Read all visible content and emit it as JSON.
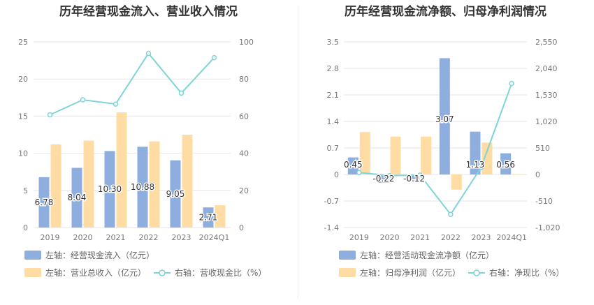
{
  "colors": {
    "bar1": "#8eaedf",
    "bar2": "#fedca4",
    "line": "#7fd4d8",
    "grid": "#e6e6ec",
    "axisText": "#777777",
    "labelText": "#333333"
  },
  "charts": [
    {
      "title": "历年经营现金流入、营业收入情况",
      "legend": {
        "bar1": "左轴：经营现金流入（亿元）",
        "bar2": "左轴：营业总收入（亿元）",
        "line": "右轴：营收现金比（%）"
      },
      "left_ticks": [
        "0",
        "5",
        "10",
        "15",
        "20",
        "25"
      ],
      "right_ticks": [
        "0",
        "20",
        "40",
        "60",
        "80",
        "100"
      ]
    },
    {
      "title": "历年经营现金流净额、归母净利润情况",
      "legend": {
        "bar1": "左轴：经营活动现金流净额（亿元）",
        "bar2": "左轴：归母净利润（亿元）",
        "line": "右轴：净现比（%）"
      },
      "left_ticks": [
        "-1.4",
        "-0.7",
        "0",
        "0.7",
        "1.4",
        "2.1",
        "2.8",
        "3.5"
      ],
      "right_ticks": [
        "-1,020",
        "-510",
        "0",
        "510",
        "1,020",
        "1,530",
        "2,040",
        "2,550"
      ]
    }
  ],
  "chart_data": [
    {
      "type": "bar",
      "title": "历年经营现金流入、营业收入情况",
      "categories": [
        "2019",
        "2020",
        "2021",
        "2022",
        "2023",
        "2024Q1"
      ],
      "ylim_left": [
        0,
        25
      ],
      "ylim_right": [
        0,
        100
      ],
      "series": [
        {
          "name": "左轴：经营现金流入（亿元）",
          "axis": "left",
          "kind": "bar",
          "values": [
            6.78,
            8.04,
            10.3,
            10.88,
            9.05,
            2.71
          ],
          "labels": [
            "6.78",
            "8.04",
            "10.30",
            "10.88",
            "9.05",
            "2.71"
          ]
        },
        {
          "name": "左轴：营业总收入（亿元）",
          "axis": "left",
          "kind": "bar",
          "values": [
            11.2,
            11.7,
            15.5,
            11.6,
            12.5,
            3.0
          ]
        },
        {
          "name": "右轴：营收现金比（%）",
          "axis": "right",
          "kind": "line",
          "values": [
            60.7,
            68.8,
            66.5,
            93.8,
            72.4,
            91.5
          ]
        }
      ],
      "grid": true,
      "legend_position": "bottom"
    },
    {
      "type": "bar",
      "title": "历年经营现金流净额、归母净利润情况",
      "categories": [
        "2019",
        "2020",
        "2021",
        "2022",
        "2023",
        "2024Q1"
      ],
      "ylim_left": [
        -1.4,
        3.5
      ],
      "ylim_right": [
        -1020,
        2550
      ],
      "series": [
        {
          "name": "左轴：经营活动现金流净额（亿元）",
          "axis": "left",
          "kind": "bar",
          "values": [
            0.45,
            -0.22,
            -0.12,
            3.07,
            1.13,
            0.56
          ],
          "labels": [
            "0.45",
            "-0.22",
            "-0.12",
            "3.07",
            "1.13",
            "0.56"
          ]
        },
        {
          "name": "左轴：归母净利润（亿元）",
          "axis": "left",
          "kind": "bar",
          "values": [
            1.12,
            1.0,
            1.0,
            -0.4,
            0.84,
            0.01
          ]
        },
        {
          "name": "右轴：净现比（%）",
          "axis": "right",
          "kind": "line",
          "values": [
            38,
            -22,
            -12,
            -768,
            135,
            1750
          ]
        }
      ],
      "grid": true,
      "legend_position": "bottom"
    }
  ]
}
